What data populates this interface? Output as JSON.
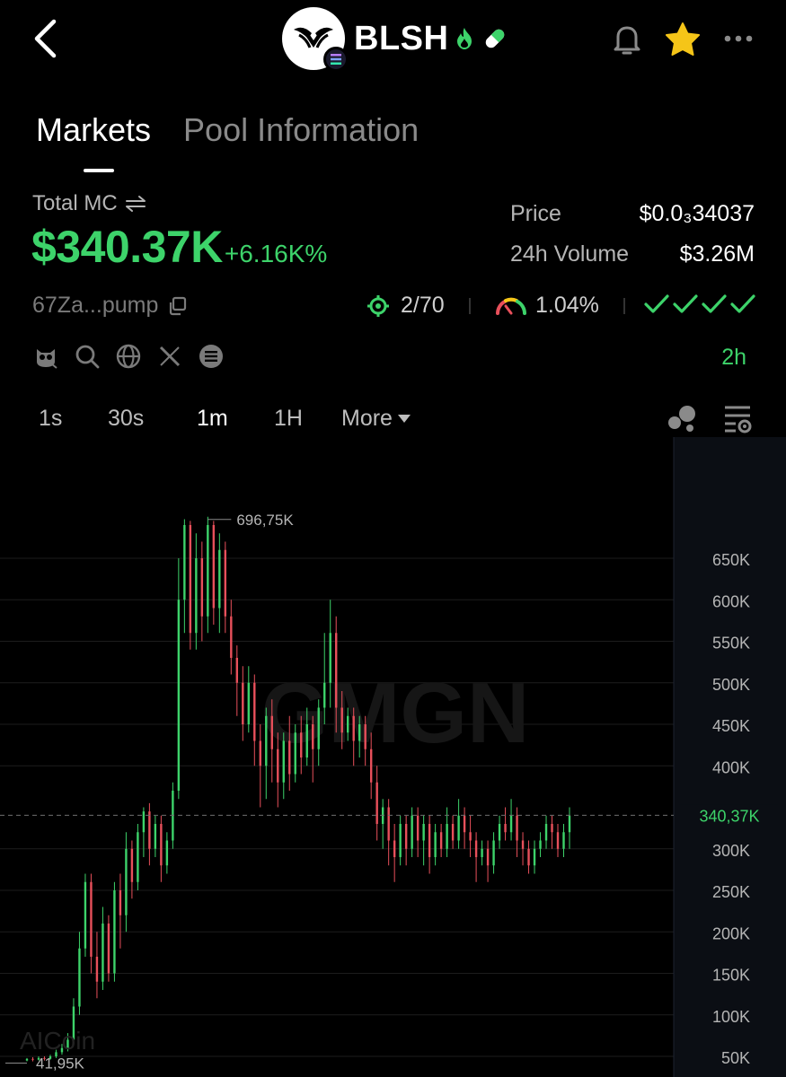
{
  "header": {
    "token_symbol": "BLSH",
    "icons": {
      "back": "back-arrow-icon",
      "fire": "fire-icon",
      "pill": "pill-icon",
      "bell": "bell-icon",
      "star": "star-icon",
      "more": "more-dots-icon"
    },
    "colors": {
      "star": "#f5c518",
      "fire": "#3dd36a",
      "pill": "#3dd36a"
    }
  },
  "tabs": [
    {
      "label": "Markets",
      "active": true
    },
    {
      "label": "Pool Information",
      "active": false
    }
  ],
  "market": {
    "total_mc_label": "Total MC",
    "total_mc_value": "$340.37K",
    "total_mc_change": "+6.16K%",
    "price_label": "Price",
    "price_value": "$0.0₃34037",
    "volume_label": "24h Volume",
    "volume_value": "$3.26M",
    "address": "67Za...pump",
    "holders": "2/70",
    "gauge_value": "1.04%",
    "checks_count": 4,
    "age": "2h",
    "accent_green": "#3dd36a"
  },
  "intervals": [
    {
      "label": "1s",
      "active": false
    },
    {
      "label": "30s",
      "active": false
    },
    {
      "label": "1m",
      "active": true
    },
    {
      "label": "1H",
      "active": false
    }
  ],
  "intervals_more": "More",
  "chart_data": {
    "type": "candlestick",
    "y_axis_ticks": [
      "650K",
      "600K",
      "550K",
      "500K",
      "450K",
      "400K",
      "300K",
      "250K",
      "200K",
      "150K",
      "100K",
      "50K"
    ],
    "y_tick_values": [
      650,
      600,
      550,
      500,
      450,
      400,
      300,
      250,
      200,
      150,
      100,
      50
    ],
    "current_value_label": "340,37K",
    "current_value": 340.37,
    "high_label": "696,75K",
    "high_value": 696.75,
    "low_label": "41,95K",
    "low_value": 41.95,
    "up_color": "#3dd36a",
    "down_color": "#e8505b",
    "watermark": "GMGN",
    "brand_mark": "AICoin",
    "candles": [
      [
        45,
        47,
        44,
        48
      ],
      [
        47,
        46,
        44,
        49
      ],
      [
        46,
        48,
        45,
        50
      ],
      [
        48,
        47,
        45,
        50
      ],
      [
        47,
        50,
        46,
        52
      ],
      [
        50,
        55,
        48,
        58
      ],
      [
        55,
        60,
        52,
        65
      ],
      [
        60,
        70,
        56,
        78
      ],
      [
        70,
        110,
        65,
        120
      ],
      [
        110,
        180,
        100,
        200
      ],
      [
        180,
        260,
        170,
        270
      ],
      [
        260,
        170,
        150,
        270
      ],
      [
        170,
        140,
        120,
        200
      ],
      [
        140,
        210,
        130,
        230
      ],
      [
        210,
        150,
        140,
        220
      ],
      [
        150,
        250,
        140,
        260
      ],
      [
        250,
        220,
        180,
        270
      ],
      [
        220,
        300,
        200,
        320
      ],
      [
        300,
        260,
        240,
        310
      ],
      [
        260,
        320,
        250,
        330
      ],
      [
        320,
        345,
        290,
        350
      ],
      [
        345,
        300,
        280,
        355
      ],
      [
        300,
        330,
        290,
        340
      ],
      [
        330,
        280,
        260,
        340
      ],
      [
        280,
        310,
        270,
        320
      ],
      [
        310,
        370,
        300,
        380
      ],
      [
        370,
        600,
        360,
        650
      ],
      [
        600,
        690,
        560,
        697
      ],
      [
        690,
        560,
        540,
        695
      ],
      [
        560,
        650,
        540,
        680
      ],
      [
        650,
        580,
        550,
        670
      ],
      [
        580,
        690,
        560,
        700
      ],
      [
        690,
        590,
        570,
        695
      ],
      [
        590,
        660,
        560,
        680
      ],
      [
        660,
        580,
        560,
        670
      ],
      [
        580,
        530,
        510,
        600
      ],
      [
        530,
        500,
        460,
        545
      ],
      [
        500,
        450,
        430,
        520
      ],
      [
        450,
        500,
        440,
        520
      ],
      [
        500,
        430,
        400,
        510
      ],
      [
        430,
        400,
        350,
        450
      ],
      [
        400,
        460,
        360,
        470
      ],
      [
        460,
        420,
        380,
        480
      ],
      [
        420,
        380,
        350,
        440
      ],
      [
        380,
        430,
        360,
        440
      ],
      [
        430,
        390,
        370,
        460
      ],
      [
        390,
        440,
        380,
        450
      ],
      [
        440,
        410,
        390,
        460
      ],
      [
        410,
        450,
        400,
        470
      ],
      [
        450,
        420,
        380,
        460
      ],
      [
        420,
        470,
        400,
        480
      ],
      [
        470,
        500,
        450,
        560
      ],
      [
        500,
        560,
        470,
        600
      ],
      [
        560,
        470,
        440,
        580
      ],
      [
        470,
        440,
        420,
        490
      ],
      [
        440,
        460,
        430,
        470
      ],
      [
        460,
        430,
        400,
        470
      ],
      [
        430,
        450,
        410,
        460
      ],
      [
        450,
        420,
        400,
        460
      ],
      [
        420,
        380,
        360,
        440
      ],
      [
        380,
        330,
        310,
        400
      ],
      [
        330,
        350,
        300,
        360
      ],
      [
        350,
        310,
        280,
        360
      ],
      [
        310,
        290,
        260,
        330
      ],
      [
        290,
        330,
        280,
        340
      ],
      [
        330,
        300,
        280,
        340
      ],
      [
        300,
        340,
        290,
        350
      ],
      [
        340,
        310,
        290,
        350
      ],
      [
        310,
        330,
        280,
        340
      ],
      [
        330,
        290,
        270,
        340
      ],
      [
        290,
        320,
        280,
        330
      ],
      [
        320,
        300,
        290,
        330
      ],
      [
        300,
        330,
        290,
        350
      ],
      [
        330,
        310,
        300,
        340
      ],
      [
        310,
        340,
        300,
        360
      ],
      [
        340,
        320,
        300,
        350
      ],
      [
        320,
        310,
        290,
        340
      ],
      [
        310,
        290,
        260,
        320
      ],
      [
        290,
        300,
        280,
        310
      ],
      [
        300,
        280,
        260,
        310
      ],
      [
        280,
        310,
        270,
        320
      ],
      [
        310,
        330,
        300,
        340
      ],
      [
        330,
        320,
        310,
        350
      ],
      [
        320,
        340,
        310,
        360
      ],
      [
        340,
        310,
        290,
        350
      ],
      [
        310,
        300,
        280,
        320
      ],
      [
        300,
        280,
        270,
        310
      ],
      [
        280,
        300,
        270,
        310
      ],
      [
        300,
        310,
        290,
        320
      ],
      [
        310,
        330,
        300,
        340
      ],
      [
        330,
        320,
        300,
        340
      ],
      [
        320,
        300,
        290,
        330
      ],
      [
        300,
        320,
        290,
        330
      ],
      [
        320,
        340,
        300,
        350
      ]
    ]
  }
}
